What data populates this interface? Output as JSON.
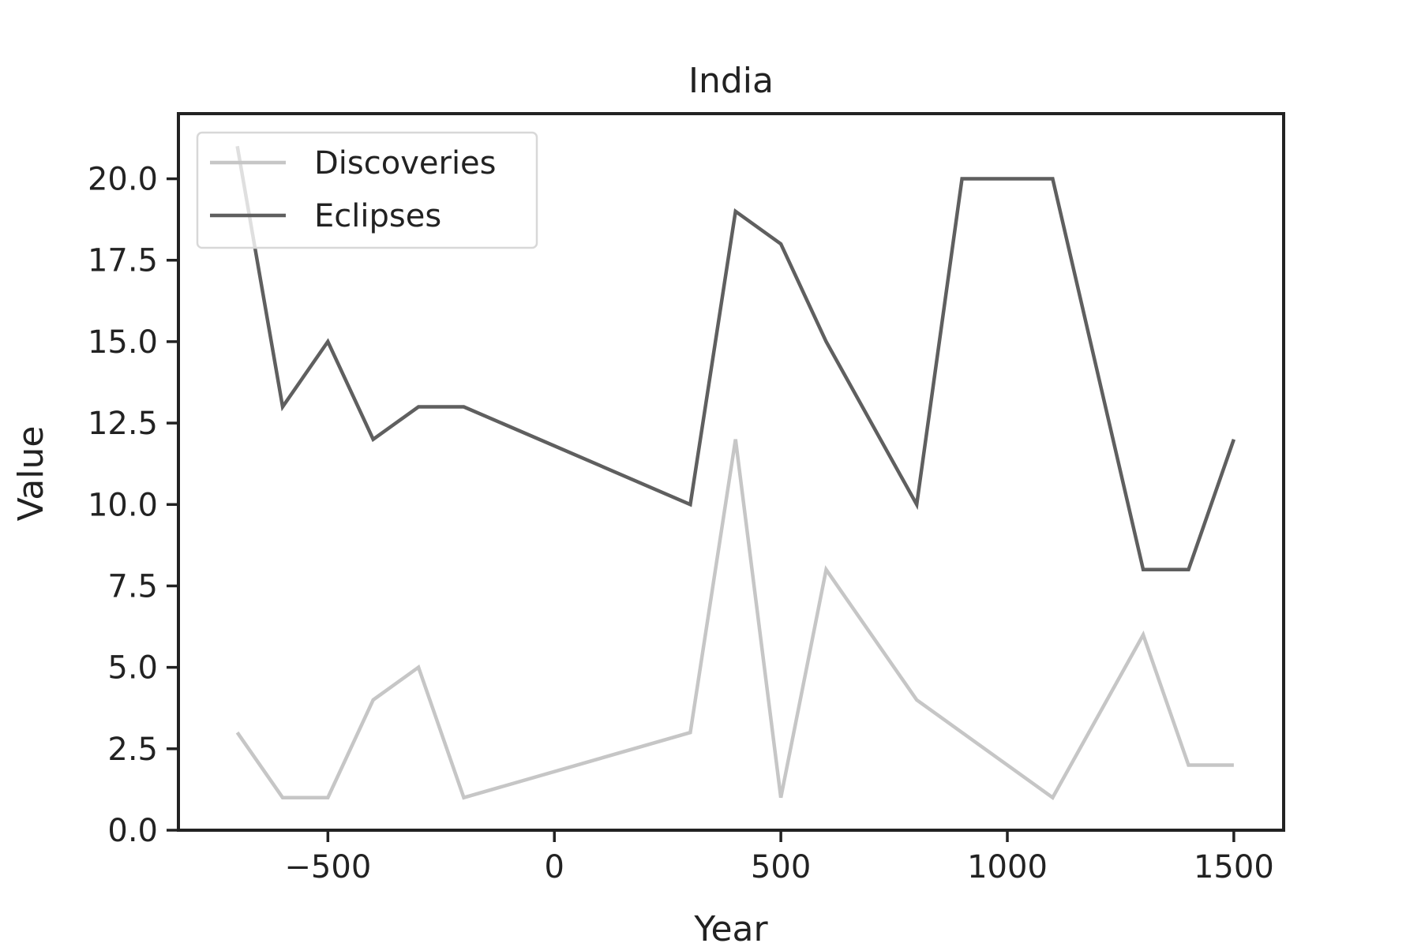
{
  "chart_data": {
    "type": "line",
    "title": "India",
    "xlabel": "Year",
    "ylabel": "Value",
    "xlim": [
      -830,
      1610
    ],
    "ylim": [
      0,
      22
    ],
    "xticks": [
      -500,
      0,
      500,
      1000,
      1500
    ],
    "xtick_labels": [
      "−500",
      "0",
      "500",
      "1000",
      "1500"
    ],
    "yticks": [
      0,
      2.5,
      5,
      7.5,
      10,
      12.5,
      15,
      17.5,
      20
    ],
    "ytick_labels": [
      "0.0",
      "2.5",
      "5.0",
      "7.5",
      "10.0",
      "12.5",
      "15.0",
      "17.5",
      "20.0"
    ],
    "grid": false,
    "legend_position": "upper-left",
    "x": [
      -700,
      -600,
      -500,
      -400,
      -300,
      -200,
      300,
      400,
      500,
      600,
      800,
      900,
      1100,
      1300,
      1400,
      1500
    ],
    "series": [
      {
        "name": "Discoveries",
        "color": "#c6c6c6",
        "values": [
          3,
          1,
          1,
          4,
          5,
          1,
          3,
          12,
          1,
          8,
          4,
          3,
          1,
          6,
          2,
          2
        ]
      },
      {
        "name": "Eclipses",
        "color": "#5f5f5f",
        "values": [
          21,
          13,
          15,
          12,
          13,
          13,
          10,
          19,
          18,
          15,
          10,
          20,
          20,
          8,
          8,
          12
        ]
      }
    ]
  }
}
